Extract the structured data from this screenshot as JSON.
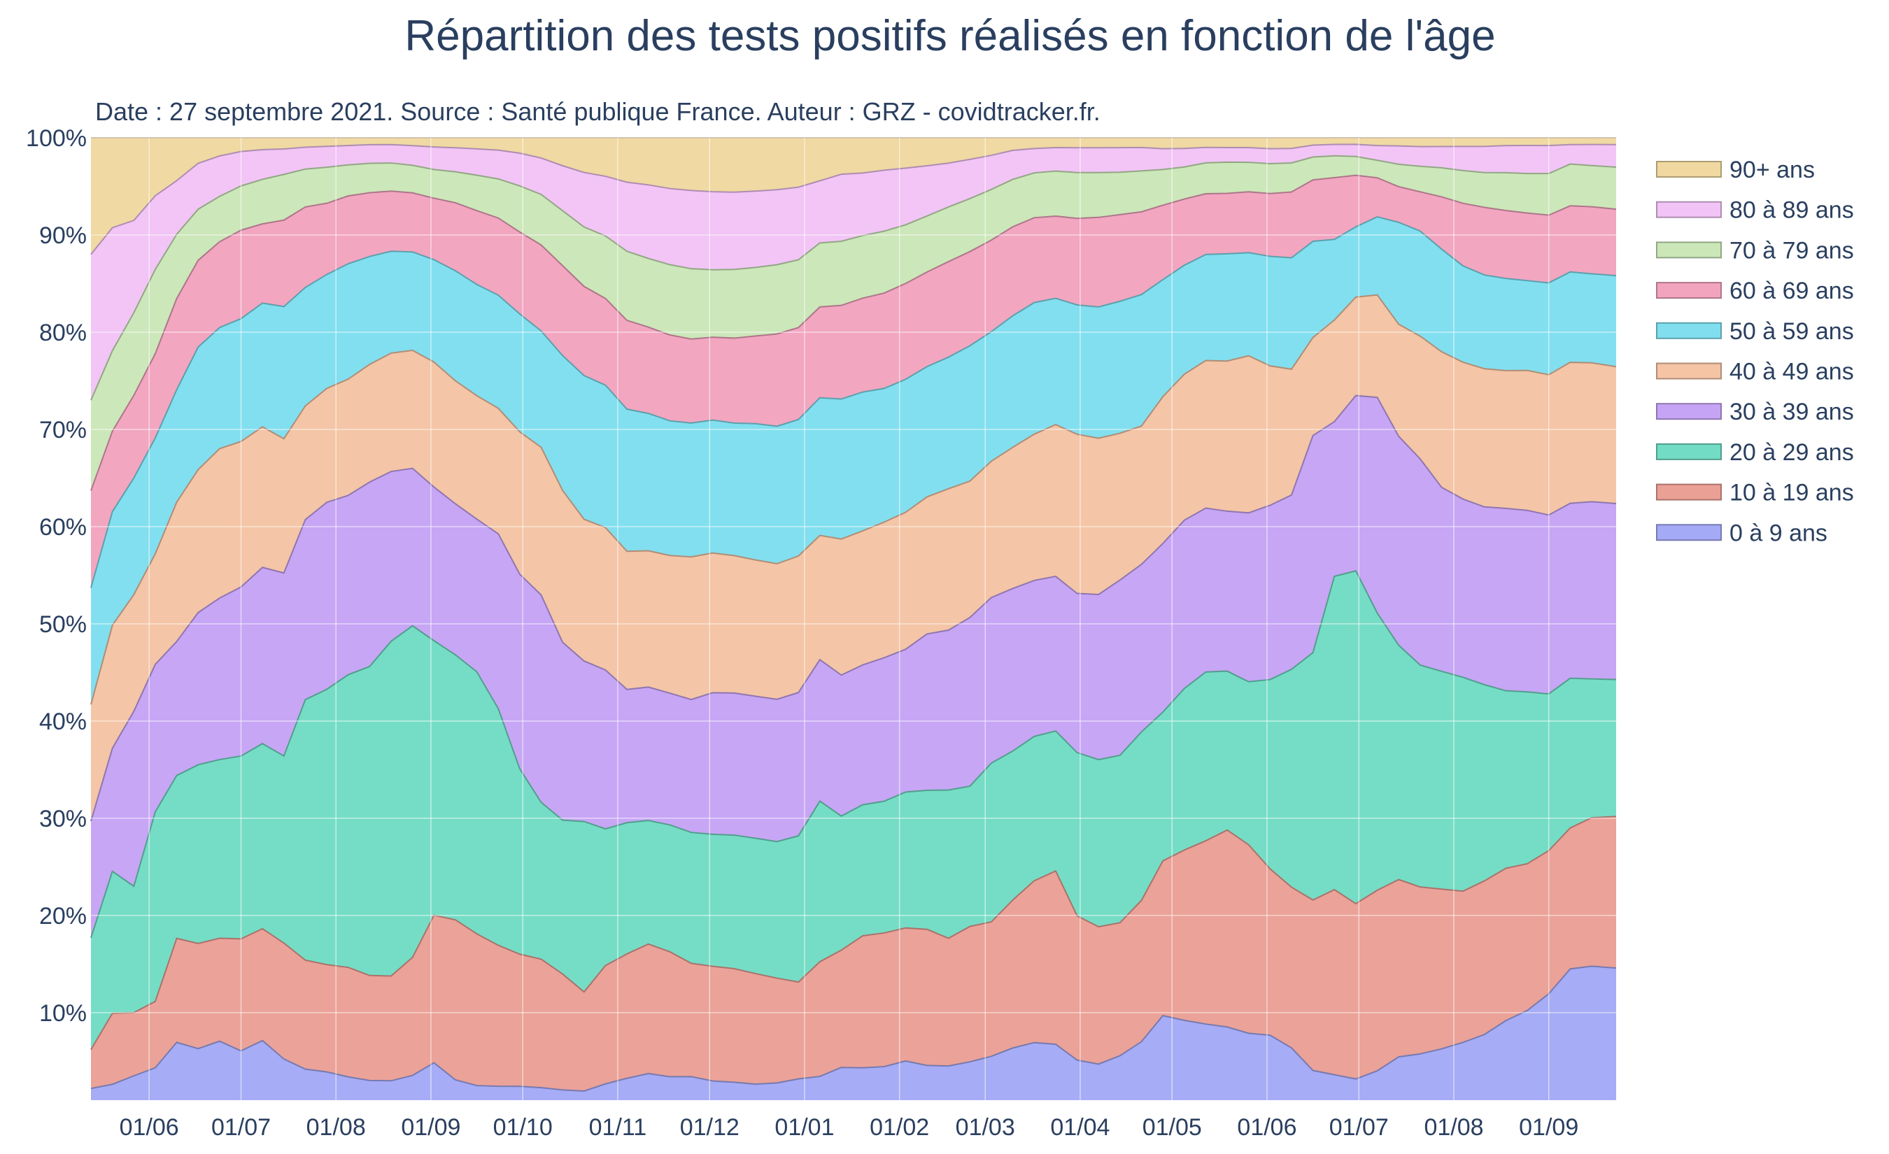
{
  "chart_data": {
    "type": "area",
    "stacked": true,
    "normalized": true,
    "title": "Répartition des tests positifs réalisés en fonction de l'âge",
    "subtitle": "Date : 27 septembre 2021. Source : Santé publique France. Auteur : GRZ - covidtracker.fr.",
    "xlabel": "",
    "ylabel": "",
    "x_range": [
      "2020-05-13",
      "2021-09-23"
    ],
    "ylim": [
      1,
      100
    ],
    "y_ticks": [
      "10%",
      "20%",
      "30%",
      "40%",
      "50%",
      "60%",
      "70%",
      "80%",
      "90%",
      "100%"
    ],
    "y_tick_values": [
      10,
      20,
      30,
      40,
      50,
      60,
      70,
      80,
      90,
      100
    ],
    "x_tick_labels": [
      "01/06",
      "01/07",
      "01/08",
      "01/09",
      "01/10",
      "01/11",
      "01/12",
      "01/01",
      "01/02",
      "01/03",
      "01/04",
      "01/05",
      "01/06",
      "01/07",
      "01/08",
      "01/09"
    ],
    "x_tick_dates": [
      "2020-06-01",
      "2020-07-01",
      "2020-08-01",
      "2020-09-01",
      "2020-10-01",
      "2020-11-01",
      "2020-12-01",
      "2021-01-01",
      "2021-02-01",
      "2021-03-01",
      "2021-04-01",
      "2021-05-01",
      "2021-06-01",
      "2021-07-01",
      "2021-08-01",
      "2021-09-01"
    ],
    "legend_position": "right",
    "x": [
      "2020-05-13",
      "2020-05-20",
      "2020-05-27",
      "2020-06-03",
      "2020-06-10",
      "2020-06-17",
      "2020-06-24",
      "2020-07-01",
      "2020-07-08",
      "2020-07-15",
      "2020-07-22",
      "2020-07-29",
      "2020-08-05",
      "2020-08-12",
      "2020-08-19",
      "2020-08-26",
      "2020-09-02",
      "2020-09-09",
      "2020-09-16",
      "2020-09-23",
      "2020-09-30",
      "2020-10-07",
      "2020-10-14",
      "2020-10-21",
      "2020-10-28",
      "2020-11-04",
      "2020-11-11",
      "2020-11-18",
      "2020-11-25",
      "2020-12-02",
      "2020-12-09",
      "2020-12-16",
      "2020-12-23",
      "2020-12-30",
      "2021-01-06",
      "2021-01-13",
      "2021-01-20",
      "2021-01-27",
      "2021-02-03",
      "2021-02-10",
      "2021-02-17",
      "2021-02-24",
      "2021-03-03",
      "2021-03-10",
      "2021-03-17",
      "2021-03-24",
      "2021-03-31",
      "2021-04-07",
      "2021-04-14",
      "2021-04-21",
      "2021-04-28",
      "2021-05-05",
      "2021-05-12",
      "2021-05-19",
      "2021-05-26",
      "2021-06-02",
      "2021-06-09",
      "2021-06-16",
      "2021-06-23",
      "2021-06-30",
      "2021-07-07",
      "2021-07-14",
      "2021-07-21",
      "2021-07-28",
      "2021-08-04",
      "2021-08-11",
      "2021-08-18",
      "2021-08-25",
      "2021-09-01",
      "2021-09-08",
      "2021-09-15",
      "2021-09-23"
    ],
    "series": [
      {
        "name": "0 à 9 ans",
        "color": "#a4aaf5",
        "values": [
          2.2,
          2.7,
          3.5,
          4.0,
          6.3,
          6.0,
          6.8,
          6.0,
          7.0,
          5.0,
          4.3,
          4.0,
          3.4,
          3.0,
          3.0,
          3.5,
          4.6,
          3.0,
          2.4,
          2.3,
          2.3,
          2.2,
          2.0,
          1.9,
          2.7,
          3.2,
          3.7,
          3.4,
          3.4,
          3.0,
          2.9,
          2.7,
          2.8,
          3.2,
          3.5,
          4.3,
          4.3,
          4.4,
          5.0,
          4.6,
          4.5,
          4.9,
          5.5,
          6.4,
          6.9,
          6.7,
          5.0,
          4.6,
          5.5,
          7.0,
          9.5,
          9.2,
          8.9,
          8.5,
          7.8,
          7.5,
          6.4,
          4.3,
          3.7,
          3.3,
          4.0,
          5.2,
          5.7,
          6.3,
          7.0,
          7.8,
          9.2,
          10.3,
          12.0,
          14.5,
          15.0,
          14.5
        ]
      },
      {
        "name": "10 à 19 ans",
        "color": "#eba096",
        "values": [
          4.0,
          7.5,
          6.5,
          6.3,
          9.7,
          10.3,
          10.2,
          11.4,
          11.3,
          11.4,
          11.5,
          11.3,
          11.3,
          10.7,
          10.8,
          12.0,
          14.4,
          16.0,
          15.0,
          13.7,
          12.9,
          12.7,
          11.6,
          10.0,
          12.3,
          12.6,
          13.2,
          12.8,
          11.6,
          11.9,
          11.9,
          11.6,
          10.9,
          10.0,
          12.0,
          11.9,
          13.5,
          13.6,
          13.6,
          14.1,
          13.1,
          13.8,
          13.8,
          15.3,
          16.6,
          17.7,
          14.5,
          13.8,
          13.5,
          14.5,
          15.6,
          17.5,
          19.0,
          20.2,
          19.2,
          16.7,
          16.6,
          18.6,
          19.5,
          18.7,
          18.5,
          17.4,
          17.0,
          16.5,
          15.7,
          15.9,
          15.7,
          15.2,
          14.8,
          14.5,
          15.5,
          15.5
        ]
      },
      {
        "name": "20 à 29 ans",
        "color": "#72dcc4",
        "values": [
          11.5,
          15.0,
          13.0,
          18.0,
          15.2,
          17.5,
          17.7,
          18.6,
          18.7,
          18.4,
          27.5,
          29.0,
          30.2,
          31.5,
          34.5,
          33.7,
          26.8,
          26.5,
          25.9,
          23.0,
          18.1,
          15.5,
          15.4,
          17.2,
          14.2,
          13.3,
          12.6,
          13.0,
          13.4,
          13.7,
          14.0,
          14.2,
          14.2,
          15.1,
          16.8,
          13.6,
          13.4,
          13.4,
          13.9,
          14.4,
          15.2,
          14.3,
          16.3,
          15.4,
          14.8,
          14.3,
          16.4,
          16.8,
          17.0,
          17.3,
          15.0,
          16.6,
          17.5,
          16.3,
          16.6,
          19.0,
          22.5,
          27.0,
          33.0,
          35.5,
          28.4,
          23.0,
          22.6,
          22.5,
          22.2,
          20.3,
          18.3,
          17.8,
          16.2,
          15.4,
          14.5,
          14.0
        ]
      },
      {
        "name": "30 à 39 ans",
        "color": "#c6a4f5",
        "values": [
          12.0,
          13.0,
          18.0,
          14.0,
          12.5,
          14.9,
          16.0,
          17.2,
          17.8,
          18.0,
          19.0,
          19.7,
          18.5,
          18.8,
          17.5,
          16.0,
          15.0,
          15.1,
          15.1,
          17.0,
          19.0,
          20.5,
          17.8,
          16.2,
          16.5,
          13.5,
          13.6,
          13.5,
          13.6,
          14.7,
          14.9,
          14.9,
          14.8,
          14.8,
          14.8,
          14.3,
          14.3,
          14.6,
          14.6,
          16.2,
          16.4,
          17.2,
          17.0,
          16.8,
          16.0,
          15.8,
          16.0,
          16.6,
          17.8,
          17.2,
          17.0,
          17.3,
          17.0,
          16.4,
          17.2,
          17.5,
          18.0,
          23.7,
          16.3,
          18.7,
          22.1,
          20.5,
          21.0,
          19.0,
          18.5,
          18.4,
          18.8,
          18.8,
          18.5,
          18.0,
          18.5,
          18.0
        ]
      },
      {
        "name": "40 à 49 ans",
        "color": "#f4c4a4",
        "values": [
          12.0,
          13.0,
          12.0,
          10.5,
          13.0,
          14.0,
          14.8,
          14.8,
          14.2,
          13.2,
          12.0,
          12.0,
          12.0,
          12.0,
          12.2,
          12.0,
          12.2,
          12.3,
          12.2,
          12.2,
          13.9,
          14.6,
          15.2,
          14.3,
          14.8,
          14.0,
          13.9,
          14.1,
          14.6,
          14.5,
          14.4,
          14.3,
          14.1,
          14.1,
          13.0,
          13.8,
          13.7,
          13.8,
          14.0,
          14.2,
          14.5,
          13.9,
          14.0,
          14.6,
          15.0,
          15.5,
          16.0,
          15.7,
          14.9,
          14.2,
          14.8,
          15.0,
          15.3,
          15.4,
          16.0,
          14.0,
          13.0,
          10.7,
          10.7,
          10.5,
          10.5,
          11.0,
          12.5,
          14.0,
          14.2,
          14.3,
          14.2,
          14.5,
          14.5,
          14.5,
          14.5,
          14.0
        ]
      },
      {
        "name": "50 à 59 ans",
        "color": "#80deef",
        "values": [
          12.0,
          12.0,
          12.0,
          11.0,
          10.5,
          12.0,
          12.0,
          12.5,
          12.5,
          13.0,
          12.5,
          12.0,
          11.9,
          11.0,
          10.5,
          10.0,
          10.0,
          11.0,
          11.0,
          11.0,
          11.5,
          11.5,
          13.5,
          14.5,
          14.8,
          14.4,
          14.0,
          13.8,
          13.7,
          13.8,
          13.9,
          14.3,
          14.3,
          14.1,
          14.4,
          14.2,
          14.2,
          13.6,
          13.6,
          13.5,
          13.5,
          13.8,
          13.3,
          13.6,
          13.5,
          12.9,
          13.0,
          13.2,
          13.4,
          13.5,
          11.8,
          11.2,
          11.0,
          11.0,
          10.5,
          11.0,
          11.5,
          10.5,
          8.5,
          7.5,
          8.0,
          10.0,
          10.7,
          10.6,
          10.0,
          9.7,
          9.5,
          9.3,
          9.5,
          9.3,
          9.3,
          9.3
        ]
      },
      {
        "name": "60 à 69 ans",
        "color": "#f2a4bf",
        "values": [
          10.0,
          8.5,
          8.5,
          8.0,
          8.5,
          8.5,
          8.5,
          9.0,
          8.0,
          8.5,
          8.5,
          7.5,
          7.0,
          6.5,
          6.2,
          6.0,
          6.0,
          6.8,
          7.3,
          7.5,
          8.0,
          8.5,
          9.0,
          9.0,
          9.0,
          9.0,
          8.8,
          8.8,
          8.6,
          8.6,
          8.9,
          9.2,
          9.6,
          9.5,
          9.5,
          9.5,
          9.6,
          9.7,
          9.8,
          9.8,
          9.8,
          9.6,
          9.4,
          9.2,
          8.7,
          8.4,
          8.7,
          9.0,
          8.8,
          8.5,
          7.5,
          6.8,
          6.3,
          6.2,
          6.2,
          6.3,
          6.8,
          6.7,
          6.5,
          5.5,
          4.0,
          3.5,
          4.0,
          5.4,
          6.5,
          7.0,
          7.0,
          7.0,
          7.0,
          6.8,
          7.0,
          6.8
        ]
      },
      {
        "name": "70 à 79 ans",
        "color": "#cbe7b8",
        "values": [
          9.3,
          8.5,
          8.5,
          8.0,
          6.0,
          5.0,
          4.5,
          4.5,
          4.5,
          4.5,
          4.0,
          3.8,
          3.2,
          3.0,
          2.9,
          2.8,
          2.8,
          3.1,
          3.5,
          3.8,
          4.5,
          5.0,
          5.5,
          6.0,
          6.5,
          7.0,
          7.0,
          7.2,
          7.2,
          7.0,
          7.2,
          7.2,
          7.2,
          7.0,
          6.7,
          6.5,
          6.4,
          6.3,
          6.0,
          5.8,
          5.6,
          5.4,
          5.2,
          4.9,
          4.6,
          4.6,
          4.6,
          4.5,
          4.3,
          4.2,
          3.6,
          3.3,
          3.2,
          3.2,
          3.0,
          3.0,
          3.0,
          2.5,
          2.3,
          2.0,
          1.8,
          2.2,
          2.6,
          3.0,
          3.4,
          3.6,
          3.9,
          4.1,
          4.3,
          4.3,
          4.3,
          4.3
        ]
      },
      {
        "name": "80 à 89 ans",
        "color": "#f2c4f6",
        "values": [
          15.0,
          13.0,
          9.5,
          7.0,
          5.0,
          4.5,
          4.0,
          3.5,
          3.0,
          2.5,
          2.3,
          2.2,
          2.0,
          1.9,
          1.9,
          2.0,
          2.2,
          2.4,
          2.6,
          2.8,
          3.2,
          3.6,
          4.5,
          5.5,
          6.2,
          7.0,
          7.5,
          7.8,
          8.0,
          8.1,
          8.1,
          8.0,
          7.8,
          7.5,
          6.5,
          6.8,
          6.4,
          6.2,
          5.8,
          5.2,
          4.5,
          4.0,
          3.5,
          3.0,
          2.5,
          2.4,
          2.5,
          2.5,
          2.5,
          2.4,
          2.1,
          1.9,
          1.6,
          1.5,
          1.5,
          1.5,
          1.5,
          1.3,
          1.2,
          1.3,
          1.5,
          1.8,
          2.0,
          2.2,
          2.5,
          2.7,
          2.8,
          2.9,
          2.9,
          2.0,
          2.2,
          2.3
        ]
      },
      {
        "name": "90+ ans",
        "color": "#f0d8a0",
        "values": [
          12.0,
          9.5,
          8.5,
          5.5,
          4.0,
          2.5,
          1.8,
          1.4,
          1.2,
          1.1,
          1.0,
          0.9,
          0.8,
          0.7,
          0.7,
          0.8,
          0.9,
          1.0,
          1.1,
          1.2,
          1.5,
          2.0,
          2.8,
          3.5,
          4.0,
          4.5,
          4.8,
          5.2,
          5.4,
          5.6,
          5.7,
          5.6,
          5.4,
          5.1,
          4.5,
          3.7,
          3.6,
          3.3,
          3.1,
          2.9,
          2.6,
          2.2,
          1.8,
          1.3,
          1.1,
          1.0,
          1.0,
          1.0,
          1.0,
          1.0,
          1.1,
          1.1,
          1.0,
          1.0,
          1.0,
          1.1,
          1.1,
          0.8,
          0.7,
          0.7,
          0.8,
          0.8,
          0.9,
          0.9,
          0.9,
          0.9,
          0.8,
          0.8,
          0.8,
          0.7,
          0.7,
          0.7
        ]
      }
    ]
  }
}
